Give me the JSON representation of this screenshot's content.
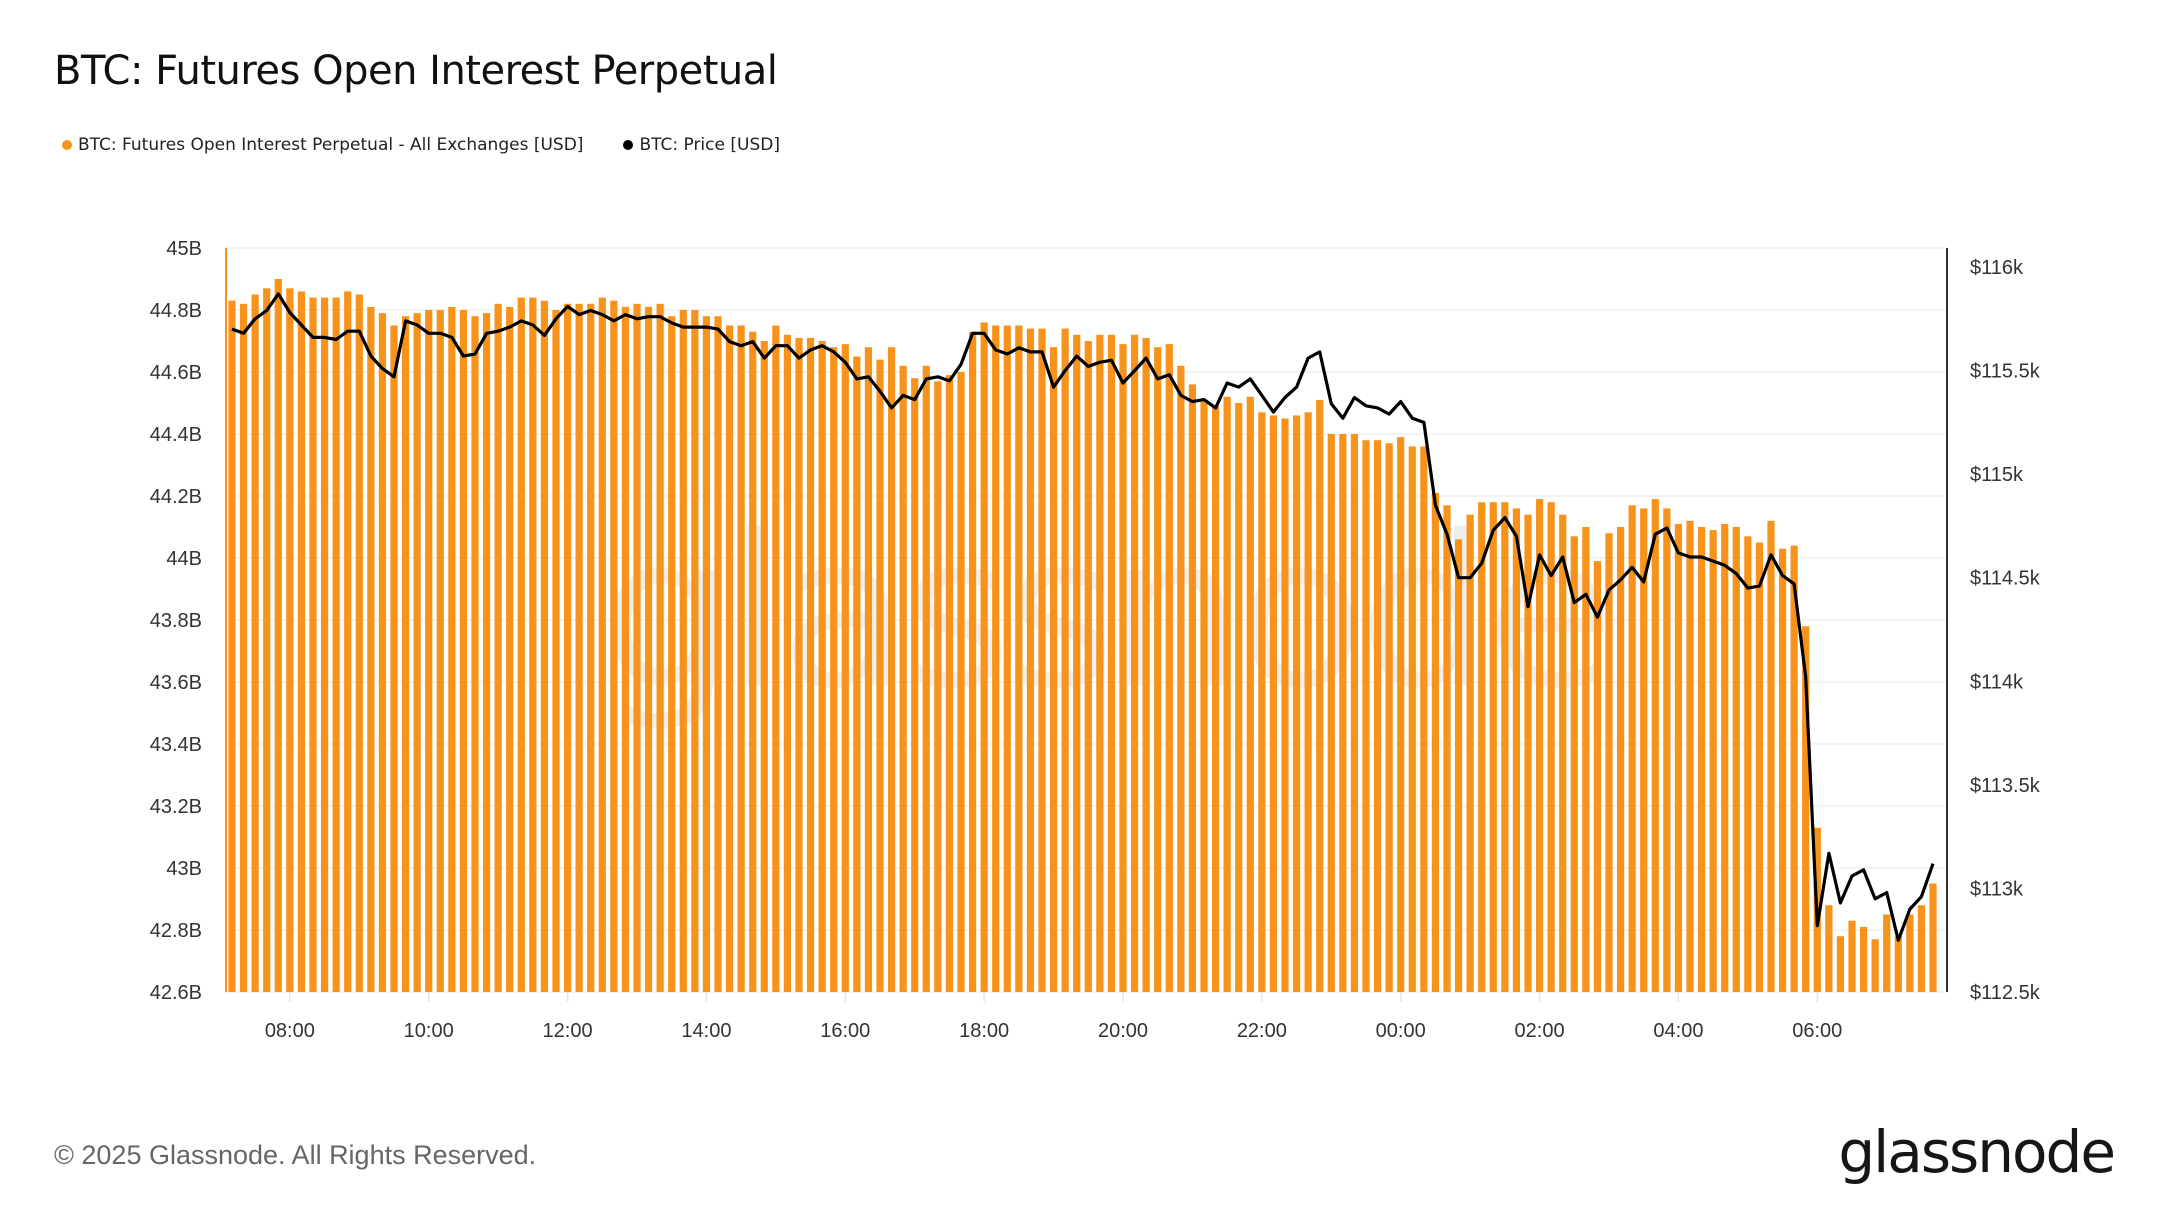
{
  "title": "BTC: Futures Open Interest Perpetual",
  "legend": [
    {
      "label": "BTC: Futures Open Interest Perpetual - All Exchanges [USD]",
      "color": "#f7931a"
    },
    {
      "label": "BTC: Price [USD]",
      "color": "#000000"
    }
  ],
  "footer": {
    "copyright": "© 2025 Glassnode. All Rights Reserved.",
    "logo": "glassnode"
  },
  "watermark": "glassnode",
  "chart_data": {
    "type": "bar+line",
    "title": "BTC: Futures Open Interest Perpetual",
    "left_axis": {
      "ticks": [
        "42.6B",
        "42.8B",
        "43B",
        "43.2B",
        "43.4B",
        "43.6B",
        "43.8B",
        "44B",
        "44.2B",
        "44.4B",
        "44.6B",
        "44.8B",
        "45B"
      ],
      "range": [
        42.6,
        45
      ],
      "unit": "B USD"
    },
    "right_axis": {
      "ticks": [
        "$112.5k",
        "$113k",
        "$113.5k",
        "$114k",
        "$114.5k",
        "$115k",
        "$115.5k",
        "$116k"
      ],
      "range": [
        112.5,
        116
      ],
      "unit": "k USD"
    },
    "x_ticks": [
      "08:00",
      "10:00",
      "12:00",
      "14:00",
      "16:00",
      "18:00",
      "20:00",
      "22:00",
      "00:00",
      "02:00",
      "04:00",
      "06:00"
    ],
    "grid": true,
    "legend_position": "top-left",
    "x": [
      "07:10",
      "07:20",
      "07:30",
      "07:40",
      "07:50",
      "08:00",
      "08:10",
      "08:20",
      "08:30",
      "08:40",
      "08:50",
      "09:00",
      "09:10",
      "09:20",
      "09:30",
      "09:40",
      "09:50",
      "10:00",
      "10:10",
      "10:20",
      "10:30",
      "10:40",
      "10:50",
      "11:00",
      "11:10",
      "11:20",
      "11:30",
      "11:40",
      "11:50",
      "12:00",
      "12:10",
      "12:20",
      "12:30",
      "12:40",
      "12:50",
      "13:00",
      "13:10",
      "13:20",
      "13:30",
      "13:40",
      "13:50",
      "14:00",
      "14:10",
      "14:20",
      "14:30",
      "14:40",
      "14:50",
      "15:00",
      "15:10",
      "15:20",
      "15:30",
      "15:40",
      "15:50",
      "16:00",
      "16:10",
      "16:20",
      "16:30",
      "16:40",
      "16:50",
      "17:00",
      "17:10",
      "17:20",
      "17:30",
      "17:40",
      "17:50",
      "18:00",
      "18:10",
      "18:20",
      "18:30",
      "18:40",
      "18:50",
      "19:00",
      "19:10",
      "19:20",
      "19:30",
      "19:40",
      "19:50",
      "20:00",
      "20:10",
      "20:20",
      "20:30",
      "20:40",
      "20:50",
      "21:00",
      "21:10",
      "21:20",
      "21:30",
      "21:40",
      "21:50",
      "22:00",
      "22:10",
      "22:20",
      "22:30",
      "22:40",
      "22:50",
      "23:00",
      "23:10",
      "23:20",
      "23:30",
      "23:40",
      "23:50",
      "00:00",
      "00:10",
      "00:20",
      "00:30",
      "00:40",
      "00:50",
      "01:00",
      "01:10",
      "01:20",
      "01:30",
      "01:40",
      "01:50",
      "02:00",
      "02:10",
      "02:20",
      "02:30",
      "02:40",
      "02:50",
      "03:00",
      "03:10",
      "03:20",
      "03:30",
      "03:40",
      "03:50",
      "04:00",
      "04:10",
      "04:20",
      "04:30",
      "04:40",
      "04:50",
      "05:00",
      "05:10",
      "05:20",
      "05:30",
      "05:40",
      "05:50",
      "06:00",
      "06:10",
      "06:20",
      "06:30",
      "06:40",
      "06:50",
      "07:00",
      "07:10",
      "07:20",
      "07:30",
      "07:40"
    ],
    "series": [
      {
        "name": "BTC: Futures Open Interest Perpetual - All Exchanges [USD]",
        "type": "bar",
        "axis": "left",
        "color": "#f7931a",
        "values": [
          44.83,
          44.82,
          44.85,
          44.87,
          44.9,
          44.87,
          44.86,
          44.84,
          44.84,
          44.84,
          44.86,
          44.85,
          44.81,
          44.79,
          44.75,
          44.78,
          44.79,
          44.8,
          44.8,
          44.81,
          44.8,
          44.78,
          44.79,
          44.82,
          44.81,
          44.84,
          44.84,
          44.83,
          44.8,
          44.82,
          44.82,
          44.82,
          44.84,
          44.83,
          44.81,
          44.82,
          44.81,
          44.82,
          44.78,
          44.8,
          44.8,
          44.78,
          44.78,
          44.75,
          44.75,
          44.73,
          44.7,
          44.75,
          44.72,
          44.71,
          44.71,
          44.7,
          44.68,
          44.69,
          44.65,
          44.68,
          44.64,
          44.68,
          44.62,
          44.58,
          44.62,
          44.57,
          44.59,
          44.6,
          44.73,
          44.76,
          44.75,
          44.75,
          44.75,
          44.74,
          44.74,
          44.68,
          44.74,
          44.72,
          44.7,
          44.72,
          44.72,
          44.69,
          44.72,
          44.71,
          44.68,
          44.69,
          44.62,
          44.56,
          44.51,
          44.49,
          44.52,
          44.5,
          44.52,
          44.47,
          44.46,
          44.45,
          44.46,
          44.47,
          44.51,
          44.4,
          44.4,
          44.4,
          44.38,
          44.38,
          44.37,
          44.39,
          44.36,
          44.36,
          44.21,
          44.17,
          44.06,
          44.14,
          44.18,
          44.18,
          44.18,
          44.16,
          44.14,
          44.19,
          44.18,
          44.14,
          44.07,
          44.1,
          43.99,
          44.08,
          44.1,
          44.17,
          44.16,
          44.19,
          44.16,
          44.11,
          44.12,
          44.1,
          44.09,
          44.11,
          44.1,
          44.07,
          44.05,
          44.12,
          44.03,
          44.04,
          43.78,
          43.13,
          42.88,
          42.78,
          42.83,
          42.81,
          42.77,
          42.85,
          42.78,
          42.85,
          42.88,
          42.95
        ]
      },
      {
        "name": "BTC: Price [USD]",
        "type": "line",
        "axis": "right",
        "color": "#000000",
        "values": [
          115.7,
          115.68,
          115.75,
          115.79,
          115.87,
          115.78,
          115.72,
          115.66,
          115.66,
          115.65,
          115.69,
          115.69,
          115.57,
          115.51,
          115.47,
          115.74,
          115.72,
          115.68,
          115.68,
          115.66,
          115.57,
          115.58,
          115.68,
          115.69,
          115.71,
          115.74,
          115.72,
          115.67,
          115.75,
          115.81,
          115.77,
          115.79,
          115.77,
          115.74,
          115.77,
          115.75,
          115.76,
          115.76,
          115.73,
          115.71,
          115.71,
          115.71,
          115.7,
          115.64,
          115.62,
          115.64,
          115.56,
          115.62,
          115.62,
          115.56,
          115.6,
          115.62,
          115.59,
          115.54,
          115.46,
          115.47,
          115.4,
          115.32,
          115.38,
          115.36,
          115.46,
          115.47,
          115.45,
          115.53,
          115.68,
          115.68,
          115.6,
          115.58,
          115.61,
          115.59,
          115.59,
          115.42,
          115.5,
          115.57,
          115.52,
          115.54,
          115.55,
          115.44,
          115.5,
          115.56,
          115.46,
          115.48,
          115.38,
          115.35,
          115.36,
          115.32,
          115.44,
          115.42,
          115.46,
          115.38,
          115.3,
          115.37,
          115.42,
          115.56,
          115.59,
          115.34,
          115.27,
          115.37,
          115.33,
          115.32,
          115.29,
          115.35,
          115.27,
          115.25,
          114.85,
          114.71,
          114.5,
          114.5,
          114.57,
          114.73,
          114.79,
          114.7,
          114.36,
          114.61,
          114.51,
          114.6,
          114.38,
          114.42,
          114.31,
          114.44,
          114.49,
          114.55,
          114.48,
          114.71,
          114.74,
          114.62,
          114.6,
          114.6,
          114.58,
          114.56,
          114.52,
          114.45,
          114.46,
          114.61,
          114.51,
          114.47,
          114.02,
          112.82,
          113.17,
          112.93,
          113.06,
          113.09,
          112.95,
          112.98,
          112.75,
          112.9,
          112.96,
          113.12
        ]
      }
    ]
  }
}
